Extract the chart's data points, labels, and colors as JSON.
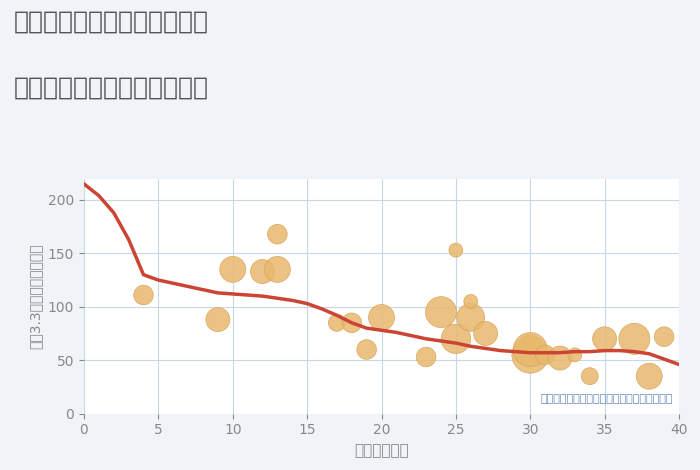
{
  "title_line1": "大阪府大阪市東淀川区北江口",
  "title_line2": "築年数別中古マンション価格",
  "xlabel": "築年数（年）",
  "ylabel": "坪（3.3㎡）単価（万円）",
  "annotation": "円の大きさは、取引のあった物件面積を示す",
  "background_color": "#f0f4f8",
  "plot_bg_color": "#ffffff",
  "title_color": "#555555",
  "axis_color": "#888888",
  "grid_color": "#c8d8e8",
  "line_color": "#cc4433",
  "bubble_color": "#e8b86d",
  "bubble_edge_color": "#d4a050",
  "annotation_color": "#6688bb",
  "xlim": [
    0,
    40
  ],
  "ylim": [
    0,
    220
  ],
  "yticks": [
    0,
    50,
    100,
    150,
    200
  ],
  "xticks": [
    0,
    5,
    10,
    15,
    20,
    25,
    30,
    35,
    40
  ],
  "line_x": [
    0,
    1,
    2,
    3,
    4,
    5,
    6,
    7,
    8,
    9,
    10,
    11,
    12,
    13,
    14,
    15,
    16,
    17,
    18,
    19,
    20,
    21,
    22,
    23,
    24,
    25,
    26,
    27,
    28,
    29,
    30,
    31,
    32,
    33,
    34,
    35,
    36,
    37,
    38,
    39,
    40
  ],
  "line_y": [
    215,
    204,
    188,
    163,
    130,
    125,
    122,
    119,
    116,
    113,
    112,
    111,
    110,
    108,
    106,
    103,
    98,
    92,
    85,
    80,
    78,
    76,
    73,
    70,
    68,
    66,
    63,
    61,
    59,
    58,
    57,
    57,
    57,
    58,
    58,
    59,
    59,
    58,
    56,
    51,
    46
  ],
  "scatter_x": [
    4,
    9,
    10,
    12,
    13,
    13,
    17,
    18,
    19,
    20,
    23,
    24,
    25,
    25,
    26,
    26,
    27,
    30,
    30,
    30,
    31,
    32,
    33,
    34,
    35,
    37,
    38,
    39
  ],
  "scatter_y": [
    111,
    88,
    135,
    133,
    135,
    168,
    85,
    85,
    60,
    90,
    53,
    95,
    153,
    70,
    90,
    105,
    75,
    65,
    55,
    60,
    55,
    52,
    55,
    35,
    70,
    70,
    35,
    72
  ],
  "scatter_s": [
    200,
    300,
    350,
    300,
    350,
    200,
    150,
    200,
    200,
    350,
    200,
    500,
    100,
    450,
    400,
    100,
    300,
    200,
    700,
    600,
    200,
    300,
    100,
    150,
    300,
    500,
    350,
    200
  ],
  "title_fontsize": 18,
  "axis_fontsize": 11,
  "ylabel_fontsize": 10,
  "annot_fontsize": 8
}
